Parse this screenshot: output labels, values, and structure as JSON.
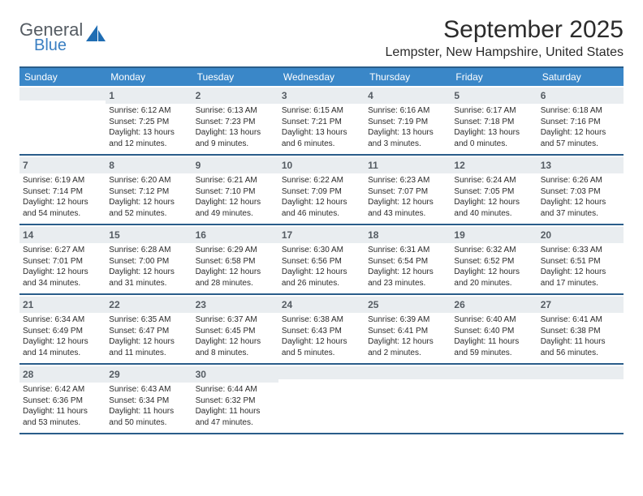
{
  "logo": {
    "word1": "General",
    "word2": "Blue"
  },
  "title": "September 2025",
  "subtitle": "Lempster, New Hampshire, United States",
  "colors": {
    "header_bar": "#3a87c8",
    "border": "#2a5d8a",
    "daynum_bg": "#e9edf0",
    "logo_gray": "#555c63",
    "logo_blue": "#3a7fc2"
  },
  "weekdays": [
    "Sunday",
    "Monday",
    "Tuesday",
    "Wednesday",
    "Thursday",
    "Friday",
    "Saturday"
  ],
  "weeks": [
    [
      null,
      {
        "n": "1",
        "sr": "Sunrise: 6:12 AM",
        "ss": "Sunset: 7:25 PM",
        "dl": "Daylight: 13 hours and 12 minutes."
      },
      {
        "n": "2",
        "sr": "Sunrise: 6:13 AM",
        "ss": "Sunset: 7:23 PM",
        "dl": "Daylight: 13 hours and 9 minutes."
      },
      {
        "n": "3",
        "sr": "Sunrise: 6:15 AM",
        "ss": "Sunset: 7:21 PM",
        "dl": "Daylight: 13 hours and 6 minutes."
      },
      {
        "n": "4",
        "sr": "Sunrise: 6:16 AM",
        "ss": "Sunset: 7:19 PM",
        "dl": "Daylight: 13 hours and 3 minutes."
      },
      {
        "n": "5",
        "sr": "Sunrise: 6:17 AM",
        "ss": "Sunset: 7:18 PM",
        "dl": "Daylight: 13 hours and 0 minutes."
      },
      {
        "n": "6",
        "sr": "Sunrise: 6:18 AM",
        "ss": "Sunset: 7:16 PM",
        "dl": "Daylight: 12 hours and 57 minutes."
      }
    ],
    [
      {
        "n": "7",
        "sr": "Sunrise: 6:19 AM",
        "ss": "Sunset: 7:14 PM",
        "dl": "Daylight: 12 hours and 54 minutes."
      },
      {
        "n": "8",
        "sr": "Sunrise: 6:20 AM",
        "ss": "Sunset: 7:12 PM",
        "dl": "Daylight: 12 hours and 52 minutes."
      },
      {
        "n": "9",
        "sr": "Sunrise: 6:21 AM",
        "ss": "Sunset: 7:10 PM",
        "dl": "Daylight: 12 hours and 49 minutes."
      },
      {
        "n": "10",
        "sr": "Sunrise: 6:22 AM",
        "ss": "Sunset: 7:09 PM",
        "dl": "Daylight: 12 hours and 46 minutes."
      },
      {
        "n": "11",
        "sr": "Sunrise: 6:23 AM",
        "ss": "Sunset: 7:07 PM",
        "dl": "Daylight: 12 hours and 43 minutes."
      },
      {
        "n": "12",
        "sr": "Sunrise: 6:24 AM",
        "ss": "Sunset: 7:05 PM",
        "dl": "Daylight: 12 hours and 40 minutes."
      },
      {
        "n": "13",
        "sr": "Sunrise: 6:26 AM",
        "ss": "Sunset: 7:03 PM",
        "dl": "Daylight: 12 hours and 37 minutes."
      }
    ],
    [
      {
        "n": "14",
        "sr": "Sunrise: 6:27 AM",
        "ss": "Sunset: 7:01 PM",
        "dl": "Daylight: 12 hours and 34 minutes."
      },
      {
        "n": "15",
        "sr": "Sunrise: 6:28 AM",
        "ss": "Sunset: 7:00 PM",
        "dl": "Daylight: 12 hours and 31 minutes."
      },
      {
        "n": "16",
        "sr": "Sunrise: 6:29 AM",
        "ss": "Sunset: 6:58 PM",
        "dl": "Daylight: 12 hours and 28 minutes."
      },
      {
        "n": "17",
        "sr": "Sunrise: 6:30 AM",
        "ss": "Sunset: 6:56 PM",
        "dl": "Daylight: 12 hours and 26 minutes."
      },
      {
        "n": "18",
        "sr": "Sunrise: 6:31 AM",
        "ss": "Sunset: 6:54 PM",
        "dl": "Daylight: 12 hours and 23 minutes."
      },
      {
        "n": "19",
        "sr": "Sunrise: 6:32 AM",
        "ss": "Sunset: 6:52 PM",
        "dl": "Daylight: 12 hours and 20 minutes."
      },
      {
        "n": "20",
        "sr": "Sunrise: 6:33 AM",
        "ss": "Sunset: 6:51 PM",
        "dl": "Daylight: 12 hours and 17 minutes."
      }
    ],
    [
      {
        "n": "21",
        "sr": "Sunrise: 6:34 AM",
        "ss": "Sunset: 6:49 PM",
        "dl": "Daylight: 12 hours and 14 minutes."
      },
      {
        "n": "22",
        "sr": "Sunrise: 6:35 AM",
        "ss": "Sunset: 6:47 PM",
        "dl": "Daylight: 12 hours and 11 minutes."
      },
      {
        "n": "23",
        "sr": "Sunrise: 6:37 AM",
        "ss": "Sunset: 6:45 PM",
        "dl": "Daylight: 12 hours and 8 minutes."
      },
      {
        "n": "24",
        "sr": "Sunrise: 6:38 AM",
        "ss": "Sunset: 6:43 PM",
        "dl": "Daylight: 12 hours and 5 minutes."
      },
      {
        "n": "25",
        "sr": "Sunrise: 6:39 AM",
        "ss": "Sunset: 6:41 PM",
        "dl": "Daylight: 12 hours and 2 minutes."
      },
      {
        "n": "26",
        "sr": "Sunrise: 6:40 AM",
        "ss": "Sunset: 6:40 PM",
        "dl": "Daylight: 11 hours and 59 minutes."
      },
      {
        "n": "27",
        "sr": "Sunrise: 6:41 AM",
        "ss": "Sunset: 6:38 PM",
        "dl": "Daylight: 11 hours and 56 minutes."
      }
    ],
    [
      {
        "n": "28",
        "sr": "Sunrise: 6:42 AM",
        "ss": "Sunset: 6:36 PM",
        "dl": "Daylight: 11 hours and 53 minutes."
      },
      {
        "n": "29",
        "sr": "Sunrise: 6:43 AM",
        "ss": "Sunset: 6:34 PM",
        "dl": "Daylight: 11 hours and 50 minutes."
      },
      {
        "n": "30",
        "sr": "Sunrise: 6:44 AM",
        "ss": "Sunset: 6:32 PM",
        "dl": "Daylight: 11 hours and 47 minutes."
      },
      null,
      null,
      null,
      null
    ]
  ]
}
